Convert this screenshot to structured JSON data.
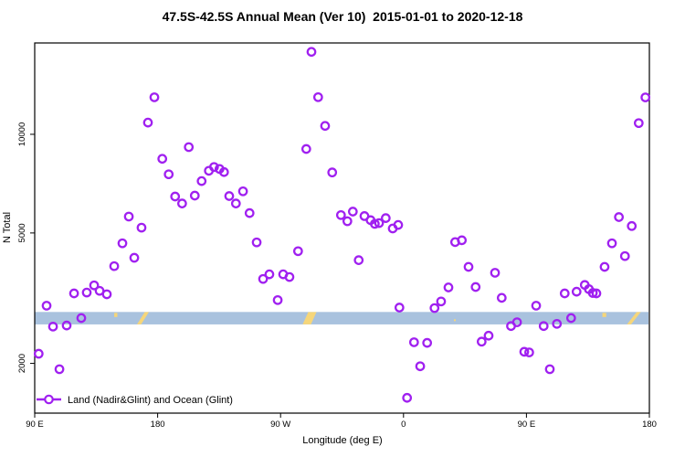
{
  "chart_data": {
    "type": "scatter",
    "title": "47.5S-42.5S Annual Mean (Ver 10)  2015-01-01 to 2020-12-18",
    "xlabel": "Longitude (deg E)",
    "ylabel": "N Total",
    "y_scale": "log10",
    "ylim": [
      1410,
      19000
    ],
    "x_axis": {
      "unit": "degrees along axis; 0 = 90E at left edge, increasing eastward with wrap",
      "range": [
        0,
        450
      ],
      "ticks": [
        {
          "pos": 0,
          "label": "90 E"
        },
        {
          "pos": 90,
          "label": "180"
        },
        {
          "pos": 180,
          "label": "90 W"
        },
        {
          "pos": 270,
          "label": "0"
        },
        {
          "pos": 360,
          "label": "90 E"
        },
        {
          "pos": 450,
          "label": "180"
        }
      ]
    },
    "y_axis": {
      "ticks": [
        {
          "value": 2000,
          "label": "2000"
        },
        {
          "value": 5000,
          "label": "5000"
        },
        {
          "value": 10000,
          "label": "10000"
        }
      ]
    },
    "legend": {
      "label": "Land (Nadir&Glint) and Ocean (Glint)",
      "marker": "open-circle-on-line",
      "position": "bottom-left"
    },
    "colors": {
      "points": "#A020F0",
      "ocean_band": "#A9C2DE",
      "land_patch": "#F6D67A",
      "axis": "#000000"
    },
    "ocean_land_band": {
      "description": "ocean/land map strip across the latitude band",
      "value_top": 2870,
      "value_bottom": 2630,
      "land_patches_deg": [
        {
          "deg_start": 58.2,
          "deg_end": 60.5,
          "kind": "dot"
        },
        {
          "deg_start": 74.9,
          "deg_end": 83.6,
          "kind": "slash"
        },
        {
          "deg_start": 196.2,
          "deg_end": 206.3,
          "kind": "blob"
        },
        {
          "deg_start": 306.9,
          "deg_end": 308.6,
          "kind": "speck"
        },
        {
          "deg_start": 415.6,
          "deg_end": 418.4,
          "kind": "dot"
        },
        {
          "deg_start": 433.6,
          "deg_end": 443.7,
          "kind": "slash"
        }
      ]
    },
    "points": [
      [
        2.9,
        2140
      ],
      [
        8.7,
        3000
      ],
      [
        13.4,
        2590
      ],
      [
        18.1,
        1920
      ],
      [
        23.4,
        2610
      ],
      [
        28.8,
        3270
      ],
      [
        34.1,
        2750
      ],
      [
        38.1,
        3290
      ],
      [
        43.5,
        3460
      ],
      [
        47.5,
        3330
      ],
      [
        52.8,
        3250
      ],
      [
        58.2,
        3960
      ],
      [
        64.2,
        4650
      ],
      [
        68.9,
        5610
      ],
      [
        72.9,
        4200
      ],
      [
        78.2,
        5190
      ],
      [
        82.9,
        10860
      ],
      [
        87.6,
        12970
      ],
      [
        93.4,
        8420
      ],
      [
        98.1,
        7550
      ],
      [
        102.8,
        6460
      ],
      [
        107.9,
        6150
      ],
      [
        112.8,
        9140
      ],
      [
        117.2,
        6500
      ],
      [
        122.2,
        7200
      ],
      [
        127.5,
        7740
      ],
      [
        131.3,
        7950
      ],
      [
        135.3,
        7840
      ],
      [
        138.6,
        7670
      ],
      [
        142.4,
        6480
      ],
      [
        147.3,
        6150
      ],
      [
        152.5,
        6700
      ],
      [
        157.3,
        5750
      ],
      [
        162.5,
        4680
      ],
      [
        167.2,
        3620
      ],
      [
        171.8,
        3740
      ],
      [
        177.9,
        3120
      ],
      [
        181.9,
        3740
      ],
      [
        186.5,
        3670
      ],
      [
        192.8,
        4400
      ],
      [
        198.8,
        9020
      ],
      [
        202.6,
        17850
      ],
      [
        207.5,
        12980
      ],
      [
        212.6,
        10610
      ],
      [
        217.8,
        7650
      ],
      [
        224.2,
        5670
      ],
      [
        228.9,
        5430
      ],
      [
        232.9,
        5810
      ],
      [
        237.2,
        4130
      ],
      [
        241.4,
        5630
      ],
      [
        245.9,
        5470
      ],
      [
        249,
        5330
      ],
      [
        252.1,
        5360
      ],
      [
        257,
        5550
      ],
      [
        262.1,
        5160
      ],
      [
        266.1,
        5290
      ],
      [
        267,
        2960
      ],
      [
        272.6,
        1570
      ],
      [
        277.7,
        2320
      ],
      [
        282.2,
        1960
      ],
      [
        287.3,
        2310
      ],
      [
        292.7,
        2950
      ],
      [
        297.5,
        3090
      ],
      [
        302.9,
        3410
      ],
      [
        307.8,
        4690
      ],
      [
        312.7,
        4750
      ],
      [
        317.6,
        3940
      ],
      [
        322.8,
        3420
      ],
      [
        327.2,
        2330
      ],
      [
        332.3,
        2430
      ],
      [
        337,
        3780
      ],
      [
        341.9,
        3170
      ],
      [
        348.7,
        2600
      ],
      [
        353.1,
        2670
      ],
      [
        358.4,
        2170
      ],
      [
        362,
        2160
      ],
      [
        367.1,
        3000
      ],
      [
        372.6,
        2600
      ],
      [
        377.1,
        1920
      ],
      [
        382.3,
        2640
      ],
      [
        388,
        3270
      ],
      [
        392.7,
        2750
      ],
      [
        396.7,
        3310
      ],
      [
        402.7,
        3470
      ],
      [
        405.7,
        3370
      ],
      [
        408.6,
        3280
      ],
      [
        411.2,
        3270
      ],
      [
        417.2,
        3940
      ],
      [
        422.6,
        4650
      ],
      [
        427.7,
        5590
      ],
      [
        432.1,
        4250
      ],
      [
        437.1,
        5250
      ],
      [
        442.2,
        10820
      ],
      [
        447.1,
        12960
      ]
    ]
  }
}
